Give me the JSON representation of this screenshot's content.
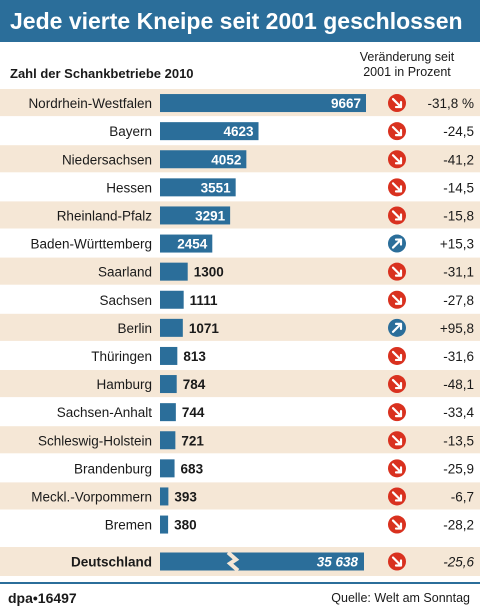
{
  "title": "Jede vierte Kneipe seit 2001 geschlossen",
  "subtitle_left": "Zahl der Schankbetriebe 2010",
  "subtitle_right_line1": "Veränderung seit",
  "subtitle_right_line2": "2001 in Prozent",
  "footer_left": "dpa•16497",
  "footer_right": "Quelle: Welt am Sonntag",
  "colors": {
    "bar": "#2b6e9a",
    "row_shade": "#f5e7d6",
    "decrease": "#d9311f",
    "increase": "#2b6e9a"
  },
  "chart_data": {
    "type": "bar",
    "orientation": "horizontal",
    "categories": [
      "Nordrhein-Westfalen",
      "Bayern",
      "Niedersachsen",
      "Hessen",
      "Rheinland-Pfalz",
      "Baden-Württemberg",
      "Saarland",
      "Sachsen",
      "Berlin",
      "Thüringen",
      "Hamburg",
      "Sachsen-Anhalt",
      "Schleswig-Holstein",
      "Brandenburg",
      "Meckl.-Vorpommern",
      "Bremen"
    ],
    "values": [
      9667,
      4623,
      4052,
      3551,
      3291,
      2454,
      1300,
      1111,
      1071,
      813,
      784,
      744,
      721,
      683,
      393,
      380
    ],
    "value_labels": [
      "9667",
      "4623",
      "4052",
      "3551",
      "3291",
      "2454",
      "1300",
      "1111",
      "1071",
      "813",
      "784",
      "744",
      "721",
      "683",
      "393",
      "380"
    ],
    "change_labels": [
      "-31,8 %",
      "-24,5",
      "-41,2",
      "-14,5",
      "-15,8",
      "+15,3",
      "-31,1",
      "-27,8",
      "+95,8",
      "-31,6",
      "-48,1",
      "-33,4",
      "-13,5",
      "-25,9",
      "-6,7",
      "-28,2"
    ],
    "change_direction": [
      "down",
      "down",
      "down",
      "down",
      "down",
      "up",
      "down",
      "down",
      "up",
      "down",
      "down",
      "down",
      "down",
      "down",
      "down",
      "down"
    ],
    "total": {
      "label": "Deutschland",
      "value": 35638,
      "value_label": "35 638",
      "change_label": "-25,6",
      "change_direction": "down",
      "bar_broken": true
    }
  }
}
